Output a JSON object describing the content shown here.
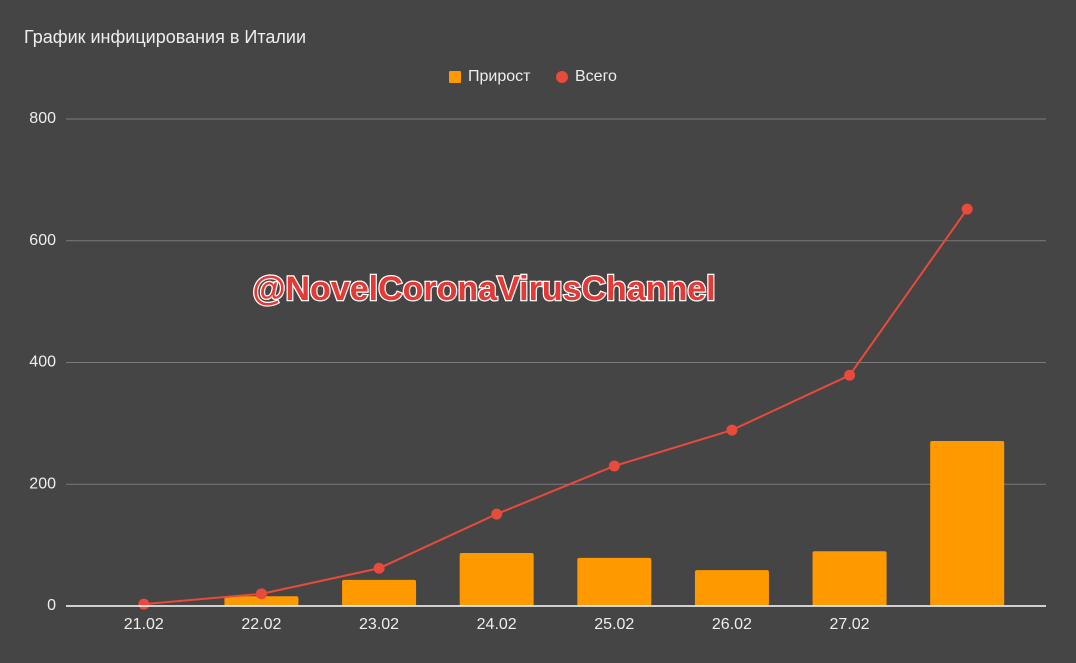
{
  "chart_data": {
    "type": "bar-line",
    "title": "График инфицирования в Италии",
    "watermark": "@NovelCoronaVirusChannel",
    "categories": [
      "21.02",
      "22.02",
      "23.02",
      "24.02",
      "25.02",
      "26.02",
      "27.02",
      null
    ],
    "series": [
      {
        "name": "Прирост",
        "color": "#ff9900",
        "kind": "bar",
        "values": [
          0,
          16,
          43,
          87,
          79,
          59,
          90,
          271
        ]
      },
      {
        "name": "Всего",
        "color": "#e84a3c",
        "kind": "line",
        "values": [
          3,
          20,
          62,
          151,
          230,
          289,
          379,
          652
        ]
      }
    ],
    "ylim": [
      0,
      800
    ],
    "yticks": [
      0,
      200,
      400,
      600,
      800
    ],
    "grid": true,
    "legend": "top"
  }
}
